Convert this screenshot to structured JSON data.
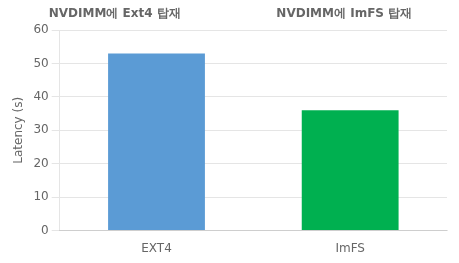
{
  "chart_data": {
    "type": "bar",
    "annotations": [
      "NVDIMM에 Ext4 탑재",
      "NVDIMM에 ImFS 탑재"
    ],
    "categories": [
      "EXT4",
      "ImFS"
    ],
    "values": [
      53,
      36
    ],
    "colors": [
      "#5b9bd5",
      "#00b050"
    ],
    "ylabel": "Latency (s)",
    "ylim": [
      0,
      60
    ],
    "yticks": [
      0,
      10,
      20,
      30,
      40,
      50,
      60
    ],
    "grid": true
  }
}
